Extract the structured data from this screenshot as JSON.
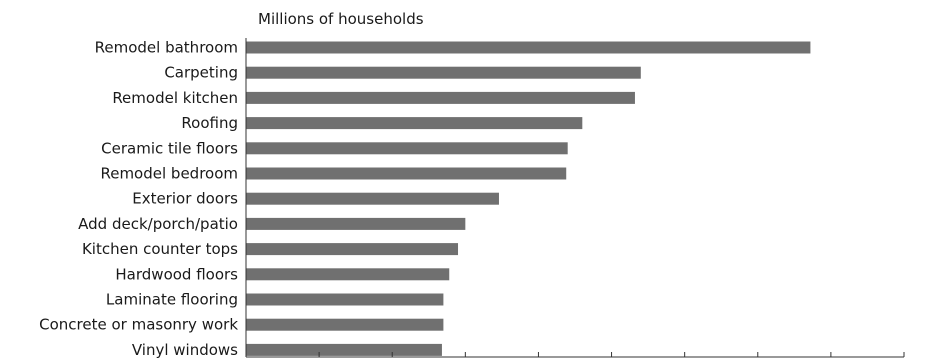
{
  "chart_data": {
    "type": "bar",
    "orientation": "horizontal",
    "title": "",
    "xlabel": "",
    "ylabel": "Millions of households",
    "categories": [
      "Remodel bathroom",
      "Carpeting",
      "Remodel kitchen",
      "Roofing",
      "Ceramic tile floors",
      "Remodel bedroom",
      "Exterior doors",
      "Add deck/porch/patio",
      "Kitchen counter tops",
      "Hardwood floors",
      "Laminate flooring",
      "Concrete or masonry work",
      "Vinyl windows"
    ],
    "values": [
      7.72,
      5.4,
      5.32,
      4.6,
      4.4,
      4.38,
      3.46,
      3.0,
      2.9,
      2.78,
      2.7,
      2.7,
      2.68
    ],
    "xlim": [
      0,
      9
    ],
    "x_ticks": [
      0,
      1,
      2,
      3,
      4,
      5,
      6,
      7,
      8,
      9
    ],
    "x_tick_labels_shown": false,
    "grid": false,
    "bar_color": "#707070",
    "axis_color": "#333333"
  }
}
